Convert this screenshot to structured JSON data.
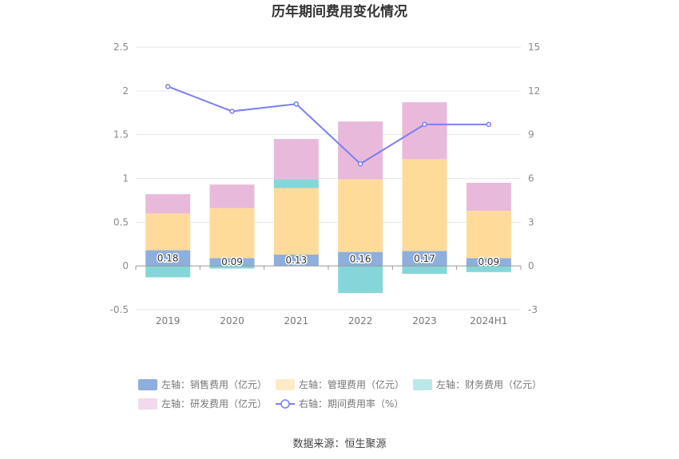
{
  "chart_data": {
    "type": "bar",
    "title": "历年期间费用变化情况",
    "categories": [
      "2019",
      "2020",
      "2021",
      "2022",
      "2023",
      "2024H1"
    ],
    "left_axis": {
      "ylim": [
        -0.5,
        2.5
      ],
      "ticks": [
        "2.5",
        "2",
        "1.5",
        "1",
        "0.5",
        "0",
        "-0.5"
      ]
    },
    "right_axis": {
      "ylim": [
        -3,
        15
      ],
      "ticks": [
        "15",
        "12",
        "9",
        "6",
        "3",
        "0",
        "-3"
      ]
    },
    "series": [
      {
        "name": "左轴：销售费用（亿元）",
        "kind": "stacked-bar",
        "axis": "left",
        "color": "#8eaedd",
        "values": [
          0.18,
          0.09,
          0.13,
          0.16,
          0.17,
          0.09
        ],
        "labels": [
          "0.18",
          "0.09",
          "0.13",
          "0.16",
          "0.17",
          "0.09"
        ]
      },
      {
        "name": "左轴：管理费用（亿元）",
        "kind": "stacked-bar",
        "axis": "left",
        "color": "#ffdb9a",
        "values": [
          0.42,
          0.57,
          0.76,
          0.83,
          1.05,
          0.54
        ]
      },
      {
        "name": "左轴：财务费用（亿元）",
        "kind": "stacked-bar",
        "axis": "left",
        "color": "#85d6d9",
        "values": [
          -0.13,
          -0.03,
          0.1,
          -0.31,
          -0.09,
          -0.07
        ]
      },
      {
        "name": "左轴：研发费用（亿元）",
        "kind": "stacked-bar",
        "axis": "left",
        "color": "#e8b9da",
        "values": [
          0.22,
          0.27,
          0.46,
          0.66,
          0.65,
          0.32
        ]
      },
      {
        "name": "右轴：期间费用率（%）",
        "kind": "line",
        "axis": "right",
        "color": "#7b7ff0",
        "values": [
          12.3,
          10.6,
          11.1,
          7.0,
          9.7,
          9.7
        ]
      }
    ],
    "grid": true,
    "legend_position": "bottom"
  },
  "footer": {
    "source": "数据来源：恒生聚源"
  }
}
